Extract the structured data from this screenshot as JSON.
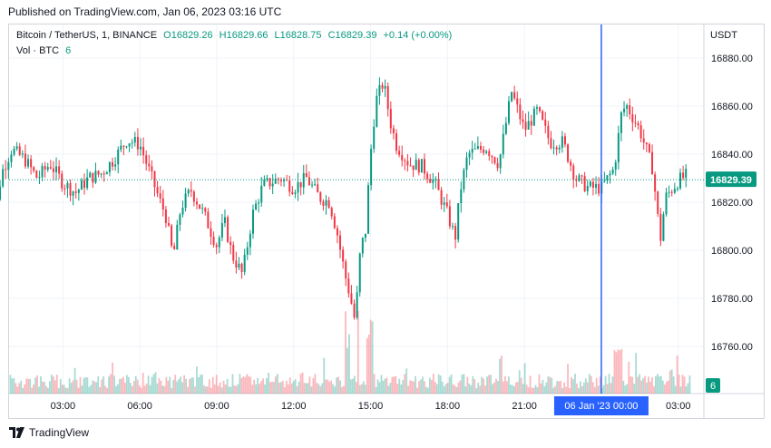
{
  "published_text": "Published on TradingView.com, Jan 06, 2023 03:16 UTC",
  "brand": "TradingView",
  "legend": {
    "symbol": "Bitcoin / TetherUS, 1, BINANCE",
    "open": "O16829.26",
    "high": "H16829.66",
    "low": "L16828.75",
    "close": "C16829.39",
    "change": "+0.14 (+0.00%)",
    "volume_label": "Vol · BTC",
    "volume_value": "6"
  },
  "currency": "USDT",
  "colors": {
    "up": "#089981",
    "down": "#f23645",
    "crosshair": "#2962ff",
    "grid": "#f0f3fa",
    "last_price_bg": "#089981"
  },
  "chart_data": {
    "type": "candlestick",
    "price_ticks": [
      "16880.00",
      "16860.00",
      "16840.00",
      "16820.00",
      "16800.00",
      "16780.00",
      "16760.00"
    ],
    "price_tick_values": [
      16880,
      16860,
      16840,
      16820,
      16800,
      16780,
      16760
    ],
    "time_ticks": [
      "03:00",
      "06:00",
      "09:00",
      "12:00",
      "15:00",
      "18:00",
      "21:00",
      "03:00"
    ],
    "time_tick_hours": [
      3,
      6,
      9,
      12,
      15,
      18,
      21,
      27
    ],
    "last_price_label": "16829.39",
    "last_price": 16829.39,
    "crosshair_time_label": "06 Jan '23   00:00",
    "crosshair_hour": 24,
    "volume_label": "6",
    "price_path": [
      [
        0.0,
        16838
      ],
      [
        0.3,
        16810
      ],
      [
        0.6,
        16832
      ],
      [
        1.0,
        16842
      ],
      [
        1.5,
        16838
      ],
      [
        2.0,
        16830
      ],
      [
        2.5,
        16836
      ],
      [
        3.0,
        16828
      ],
      [
        3.5,
        16824
      ],
      [
        4.0,
        16830
      ],
      [
        4.5,
        16832
      ],
      [
        5.0,
        16838
      ],
      [
        5.5,
        16846
      ],
      [
        6.0,
        16844
      ],
      [
        6.4,
        16832
      ],
      [
        6.8,
        16820
      ],
      [
        7.0,
        16815
      ],
      [
        7.3,
        16797
      ],
      [
        7.6,
        16818
      ],
      [
        8.0,
        16825
      ],
      [
        8.5,
        16815
      ],
      [
        9.0,
        16802
      ],
      [
        9.3,
        16812
      ],
      [
        9.6,
        16798
      ],
      [
        10.0,
        16790
      ],
      [
        10.4,
        16815
      ],
      [
        10.8,
        16827
      ],
      [
        11.5,
        16830
      ],
      [
        12.0,
        16826
      ],
      [
        12.5,
        16830
      ],
      [
        13.0,
        16822
      ],
      [
        13.4,
        16820
      ],
      [
        13.7,
        16807
      ],
      [
        14.0,
        16790
      ],
      [
        14.2,
        16781
      ],
      [
        14.4,
        16770
      ],
      [
        14.6,
        16800
      ],
      [
        14.8,
        16808
      ],
      [
        15.0,
        16840
      ],
      [
        15.2,
        16862
      ],
      [
        15.5,
        16870
      ],
      [
        15.8,
        16852
      ],
      [
        16.0,
        16844
      ],
      [
        16.5,
        16836
      ],
      [
        17.0,
        16835
      ],
      [
        17.5,
        16828
      ],
      [
        18.0,
        16815
      ],
      [
        18.3,
        16805
      ],
      [
        18.5,
        16825
      ],
      [
        18.8,
        16840
      ],
      [
        19.5,
        16843
      ],
      [
        20.0,
        16836
      ],
      [
        20.5,
        16866
      ],
      [
        21.0,
        16850
      ],
      [
        21.5,
        16858
      ],
      [
        22.0,
        16845
      ],
      [
        22.5,
        16845
      ],
      [
        23.0,
        16830
      ],
      [
        23.5,
        16826
      ],
      [
        24.0,
        16826
      ],
      [
        24.5,
        16834
      ],
      [
        24.8,
        16858
      ],
      [
        25.0,
        16860
      ],
      [
        25.5,
        16850
      ],
      [
        26.0,
        16834
      ],
      [
        26.3,
        16804
      ],
      [
        26.5,
        16822
      ],
      [
        27.0,
        16829
      ],
      [
        27.3,
        16831
      ]
    ],
    "x_range_hours": [
      0.9,
      28.0
    ],
    "y_range": [
      16748,
      16888
    ]
  }
}
